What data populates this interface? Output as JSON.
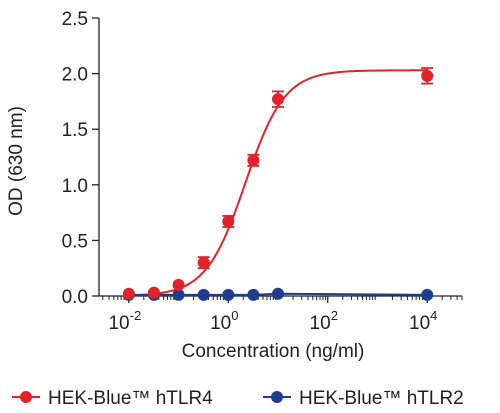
{
  "chart_data": {
    "type": "scatter",
    "x_scale": "log",
    "xlim_exponents": [
      -2.6,
      4.7
    ],
    "ylim": [
      0.0,
      2.5
    ],
    "xlabel": "Concentration (ng/ml)",
    "ylabel": "OD (630 nm)",
    "x_ticks": [
      {
        "exponent": -2,
        "base": "10",
        "power": "-2"
      },
      {
        "exponent": 0,
        "base": "10",
        "power": "0"
      },
      {
        "exponent": 2,
        "base": "10",
        "power": "2"
      },
      {
        "exponent": 4,
        "base": "10",
        "power": "4"
      }
    ],
    "y_ticks": [
      "0.0",
      "0.5",
      "1.0",
      "1.5",
      "2.0",
      "2.5"
    ],
    "y_tick_values": [
      0,
      0.5,
      1.0,
      1.5,
      2.0,
      2.5
    ],
    "grid": false,
    "legend_position": "bottom",
    "series": [
      {
        "name": "HEK-Blue™ hTLR4",
        "color": "#e3232b",
        "points": [
          {
            "x": 0.01,
            "y": 0.02,
            "err": 0.0
          },
          {
            "x": 0.032,
            "y": 0.03,
            "err": 0.0
          },
          {
            "x": 0.1,
            "y": 0.1,
            "err": 0.0
          },
          {
            "x": 0.32,
            "y": 0.3,
            "err": 0.05
          },
          {
            "x": 1,
            "y": 0.67,
            "err": 0.05
          },
          {
            "x": 3.2,
            "y": 1.22,
            "err": 0.05
          },
          {
            "x": 10,
            "y": 1.77,
            "err": 0.07
          },
          {
            "x": 10000,
            "y": 1.98,
            "err": 0.07
          }
        ],
        "fit_curve": {
          "bottom": 0.0,
          "top": 2.03,
          "ec50": 2.2,
          "hill": 1.1
        }
      },
      {
        "name": "HEK-Blue™ hTLR2",
        "color": "#1f3d8f",
        "points": [
          {
            "x": 0.01,
            "y": 0.01,
            "err": 0.0
          },
          {
            "x": 0.032,
            "y": 0.01,
            "err": 0.0
          },
          {
            "x": 0.1,
            "y": 0.01,
            "err": 0.0
          },
          {
            "x": 0.32,
            "y": 0.01,
            "err": 0.0
          },
          {
            "x": 1,
            "y": 0.01,
            "err": 0.0
          },
          {
            "x": 3.2,
            "y": 0.01,
            "err": 0.0
          },
          {
            "x": 10,
            "y": 0.02,
            "err": 0.0
          },
          {
            "x": 10000,
            "y": 0.01,
            "err": 0.0
          }
        ]
      }
    ]
  }
}
